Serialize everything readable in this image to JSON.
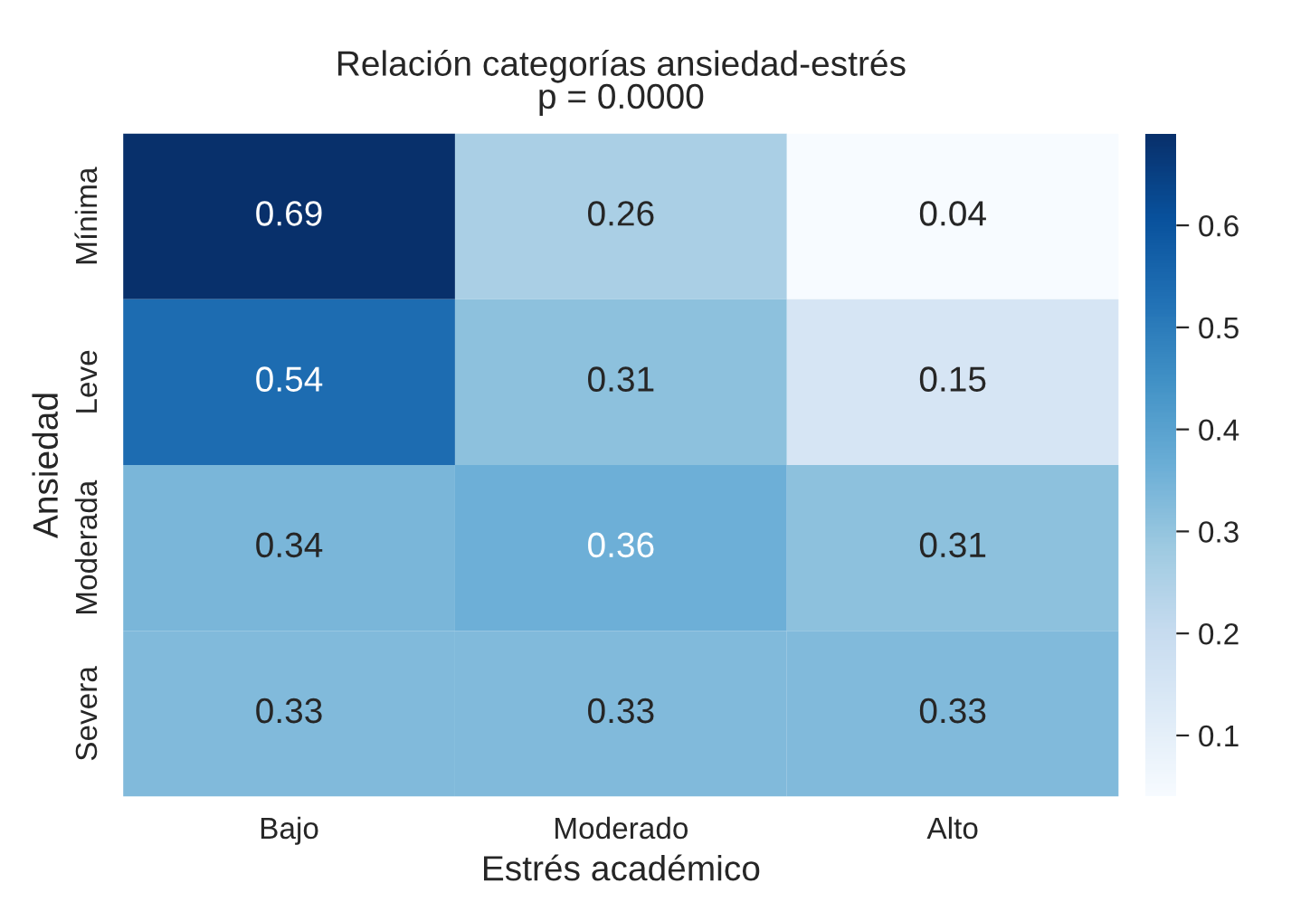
{
  "chart_data": {
    "type": "heatmap",
    "title": "Relación categorías ansiedad-estrés",
    "subtitle": "p = 0.0000",
    "xlabel": "Estrés académico",
    "ylabel": "Ansiedad",
    "categories": [
      "Bajo",
      "Moderado",
      "Alto"
    ],
    "y_categories": [
      "Mínima",
      "Leve",
      "Moderada",
      "Severa"
    ],
    "cells": [
      [
        0.69,
        0.26,
        0.04
      ],
      [
        0.54,
        0.31,
        0.15
      ],
      [
        0.34,
        0.36,
        0.31
      ],
      [
        0.33,
        0.33,
        0.33
      ]
    ],
    "cell_labels": [
      [
        "0.69",
        "0.26",
        "0.04"
      ],
      [
        "0.54",
        "0.31",
        "0.15"
      ],
      [
        "0.34",
        "0.36",
        "0.31"
      ],
      [
        "0.33",
        "0.33",
        "0.33"
      ]
    ],
    "clim": [
      0.04,
      0.69
    ],
    "cticks": [
      0.1,
      0.2,
      0.3,
      0.4,
      0.5,
      0.6
    ]
  }
}
